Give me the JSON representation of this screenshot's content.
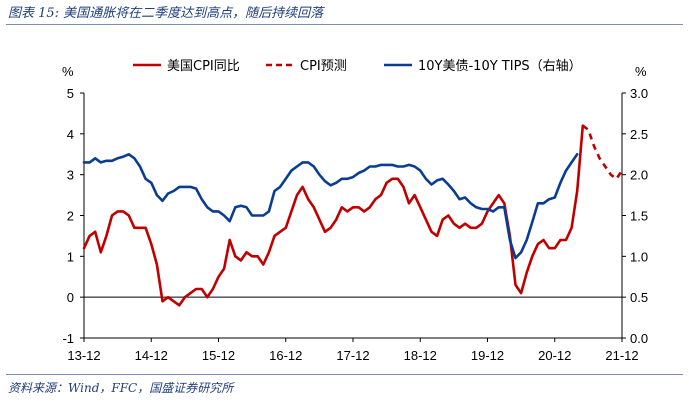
{
  "figure": {
    "title": "图表 15:  美国通胀将在二季度达到高点，随后持续回落",
    "source": "资料来源：Wind，FFC，国盛证券研究所"
  },
  "chart_data": {
    "type": "line",
    "title": "",
    "y_left_label": "%",
    "y_right_label": "%",
    "y_left_range": [
      -1,
      5
    ],
    "y_right_range": [
      0.0,
      3.0
    ],
    "y_left_ticks": [
      "-1",
      "0",
      "1",
      "2",
      "3",
      "4",
      "5"
    ],
    "y_right_ticks": [
      "0.0",
      "0.5",
      "1.0",
      "1.5",
      "2.0",
      "2.5",
      "3.0"
    ],
    "x_range": [
      0,
      96
    ],
    "x_ticks": [
      {
        "x": 0,
        "label": "13-12"
      },
      {
        "x": 12,
        "label": "14-12"
      },
      {
        "x": 24,
        "label": "15-12"
      },
      {
        "x": 36,
        "label": "16-12"
      },
      {
        "x": 48,
        "label": "17-12"
      },
      {
        "x": 60,
        "label": "18-12"
      },
      {
        "x": 72,
        "label": "19-12"
      },
      {
        "x": 84,
        "label": "20-12"
      },
      {
        "x": 96,
        "label": "21-12"
      }
    ],
    "legend_position": "top",
    "series": [
      {
        "name": "美国CPI同比",
        "axis": "left",
        "color": "#c00000",
        "style": "solid",
        "x": [
          0,
          1,
          2,
          3,
          4,
          5,
          6,
          7,
          8,
          9,
          10,
          11,
          12,
          13,
          14,
          15,
          16,
          17,
          18,
          19,
          20,
          21,
          22,
          23,
          24,
          25,
          26,
          27,
          28,
          29,
          30,
          31,
          32,
          33,
          34,
          35,
          36,
          37,
          38,
          39,
          40,
          41,
          42,
          43,
          44,
          45,
          46,
          47,
          48,
          49,
          50,
          51,
          52,
          53,
          54,
          55,
          56,
          57,
          58,
          59,
          60,
          61,
          62,
          63,
          64,
          65,
          66,
          67,
          68,
          69,
          70,
          71,
          72,
          73,
          74,
          75,
          76,
          77,
          78,
          79,
          80,
          81,
          82,
          83,
          84,
          85,
          86,
          87,
          88,
          89
        ],
        "y": [
          1.2,
          1.5,
          1.6,
          1.1,
          1.5,
          2.0,
          2.1,
          2.1,
          2.0,
          1.7,
          1.7,
          1.7,
          1.3,
          0.8,
          -0.1,
          0.0,
          -0.1,
          -0.2,
          0.0,
          0.1,
          0.2,
          0.2,
          0.0,
          0.2,
          0.5,
          0.7,
          1.4,
          1.0,
          0.9,
          1.1,
          1.0,
          1.0,
          0.8,
          1.1,
          1.5,
          1.6,
          1.7,
          2.1,
          2.5,
          2.7,
          2.4,
          2.2,
          1.9,
          1.6,
          1.7,
          1.9,
          2.2,
          2.1,
          2.2,
          2.2,
          2.1,
          2.2,
          2.4,
          2.5,
          2.8,
          2.9,
          2.9,
          2.7,
          2.3,
          2.5,
          2.2,
          1.9,
          1.6,
          1.5,
          1.9,
          2.0,
          1.8,
          1.7,
          1.8,
          1.7,
          1.7,
          1.8,
          2.1,
          2.3,
          2.5,
          2.3,
          1.5,
          0.3,
          0.1,
          0.6,
          1.0,
          1.3,
          1.4,
          1.2,
          1.2,
          1.4,
          1.4,
          1.7,
          2.6,
          4.2
        ]
      },
      {
        "name": "CPI预测",
        "axis": "left",
        "color": "#c00000",
        "style": "dashed",
        "x": [
          89,
          90,
          91,
          92,
          93,
          94,
          95,
          96
        ],
        "y": [
          4.2,
          4.1,
          3.7,
          3.4,
          3.2,
          3.0,
          2.9,
          3.1
        ]
      },
      {
        "name": "10Y美债-10Y TIPS（右轴）",
        "axis": "right",
        "color": "#0a3d91",
        "style": "solid",
        "x": [
          0,
          1,
          2,
          3,
          4,
          5,
          6,
          7,
          8,
          9,
          10,
          11,
          12,
          13,
          14,
          15,
          16,
          17,
          18,
          19,
          20,
          21,
          22,
          23,
          24,
          25,
          26,
          27,
          28,
          29,
          30,
          31,
          32,
          33,
          34,
          35,
          36,
          37,
          38,
          39,
          40,
          41,
          42,
          43,
          44,
          45,
          46,
          47,
          48,
          49,
          50,
          51,
          52,
          53,
          54,
          55,
          56,
          57,
          58,
          59,
          60,
          61,
          62,
          63,
          64,
          65,
          66,
          67,
          68,
          69,
          70,
          71,
          72,
          73,
          74,
          75,
          76,
          77,
          78,
          79,
          80,
          81,
          82,
          83,
          84,
          85,
          86,
          87,
          88
        ],
        "y": [
          2.15,
          2.15,
          2.2,
          2.15,
          2.17,
          2.17,
          2.2,
          2.22,
          2.25,
          2.2,
          2.1,
          1.95,
          1.9,
          1.75,
          1.68,
          1.77,
          1.8,
          1.85,
          1.85,
          1.85,
          1.83,
          1.7,
          1.6,
          1.55,
          1.55,
          1.5,
          1.43,
          1.6,
          1.62,
          1.6,
          1.5,
          1.5,
          1.5,
          1.55,
          1.8,
          1.85,
          1.95,
          2.05,
          2.1,
          2.15,
          2.15,
          2.1,
          2.0,
          1.92,
          1.87,
          1.9,
          1.95,
          1.95,
          1.97,
          2.02,
          2.05,
          2.1,
          2.1,
          2.12,
          2.12,
          2.12,
          2.1,
          2.1,
          2.12,
          2.1,
          2.05,
          1.95,
          1.88,
          1.93,
          1.95,
          1.88,
          1.8,
          1.7,
          1.72,
          1.65,
          1.6,
          1.58,
          1.58,
          1.55,
          1.6,
          1.6,
          1.2,
          0.98,
          1.05,
          1.2,
          1.42,
          1.65,
          1.65,
          1.7,
          1.72,
          1.9,
          2.05,
          2.15,
          2.25
        ]
      }
    ]
  }
}
